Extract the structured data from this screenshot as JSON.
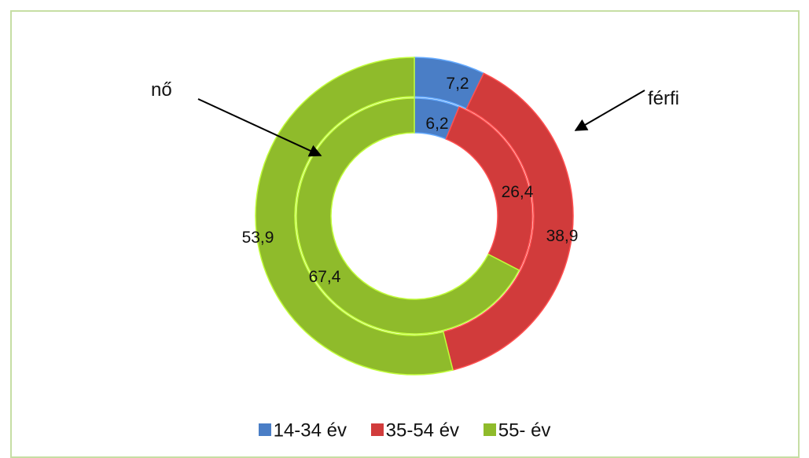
{
  "chart_data": {
    "type": "doughnut",
    "categories": [
      "14-34 év",
      "35-54 év",
      "55- év"
    ],
    "colors": [
      "#4a7ec6",
      "#d13b3b",
      "#8fbb2b"
    ],
    "series": [
      {
        "name": "férfi",
        "ring": "outer",
        "values": [
          7.2,
          38.9,
          53.9
        ],
        "labels": [
          "7,2",
          "38,9",
          "53,9"
        ]
      },
      {
        "name": "nő",
        "ring": "inner",
        "values": [
          6.2,
          26.4,
          67.4
        ],
        "labels": [
          "6,2",
          "26,4",
          "67,4"
        ]
      }
    ],
    "legend_position": "bottom",
    "annotations": [
      "nő",
      "férfi"
    ]
  }
}
